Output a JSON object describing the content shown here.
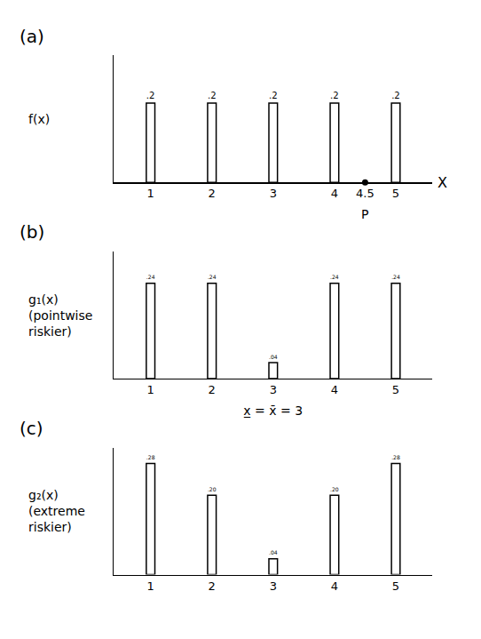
{
  "chart_data": [
    {
      "type": "bar",
      "title": "(a)",
      "ylabel": "f(x)",
      "xlabel": "X",
      "x": [
        1,
        2,
        3,
        4,
        5
      ],
      "values": [
        0.2,
        0.2,
        0.2,
        0.2,
        0.2
      ],
      "value_labels": [
        ".2",
        ".2",
        ".2",
        ".2",
        ".2"
      ],
      "data_labels": true,
      "xlim": [
        0.4,
        5.6
      ],
      "xticks": [
        1,
        2,
        3,
        4,
        4.5,
        5
      ],
      "ylim": [
        0,
        0.32
      ],
      "tick_labels": "x",
      "color": "#ffffff",
      "annotations": [
        {
          "x": 4.5,
          "y": 0,
          "text": "P",
          "marker": "dot"
        }
      ]
    },
    {
      "type": "bar",
      "title": "(b)",
      "ylabel": "g₁(x) (pointwise riskier)",
      "x": [
        1,
        2,
        3,
        4,
        5
      ],
      "values": [
        0.24,
        0.24,
        0.04,
        0.24,
        0.24
      ],
      "value_labels": [
        ".24",
        ".24",
        ".04",
        ".24",
        ".24"
      ],
      "data_labels": true,
      "xlim": [
        0.4,
        5.6
      ],
      "xticks": [
        1,
        2,
        3,
        4,
        5
      ],
      "ylim": [
        0,
        0.32
      ],
      "tick_labels": "x",
      "color": "#ffffff",
      "annotations": [
        {
          "x": 3,
          "y": 0,
          "text": "x̲ = x̄ = 3"
        }
      ]
    },
    {
      "type": "bar",
      "title": "(c)",
      "ylabel": "g₂(x) (extreme riskier)",
      "x": [
        1,
        2,
        3,
        4,
        5
      ],
      "values": [
        0.28,
        0.2,
        0.04,
        0.2,
        0.28
      ],
      "value_labels": [
        ".28",
        ".20",
        ".04",
        ".20",
        ".28"
      ],
      "data_labels": true,
      "xlim": [
        0.4,
        5.6
      ],
      "xticks": [
        1,
        2,
        3,
        4,
        5
      ],
      "ylim": [
        0,
        0.32
      ],
      "tick_labels": "x",
      "color": "#ffffff"
    }
  ]
}
